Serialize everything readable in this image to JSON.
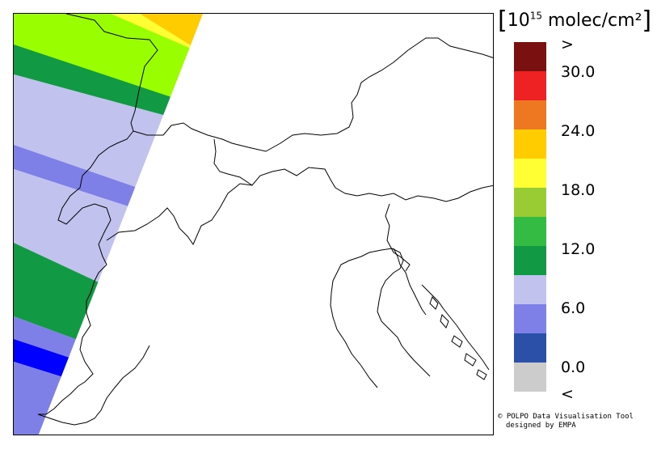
{
  "legend": {
    "unit_prefix": "10",
    "unit_exponent": "15",
    "unit_rest": " molec/cm²",
    "colors": [
      "#7a1010",
      "#ee2222",
      "#ee7722",
      "#ffcc00",
      "#ffff33",
      "#99cc33",
      "#33bb44",
      "#119944",
      "#c2c2ee",
      "#7f7fe8",
      "#2a50a8",
      "#cccccc"
    ],
    "tick_labels": {
      "gt": ">",
      "t30": "30.0",
      "t24": "24.0",
      "t18": "18.0",
      "t12": "12.0",
      "t6": "6.0",
      "t0": "0.0",
      "lt": "<"
    }
  },
  "credit": {
    "line1": "© POLPO Data Visualisation Tool",
    "line2": "designed by EMPA"
  },
  "swath_colors": {
    "orange": "#ffcc00",
    "yellow": "#ffff33",
    "yellow_green": "#99ff00",
    "green": "#119944",
    "lavender": "#c2c2ee",
    "periwinkle": "#7f7fe8",
    "blue": "#0000ff"
  }
}
